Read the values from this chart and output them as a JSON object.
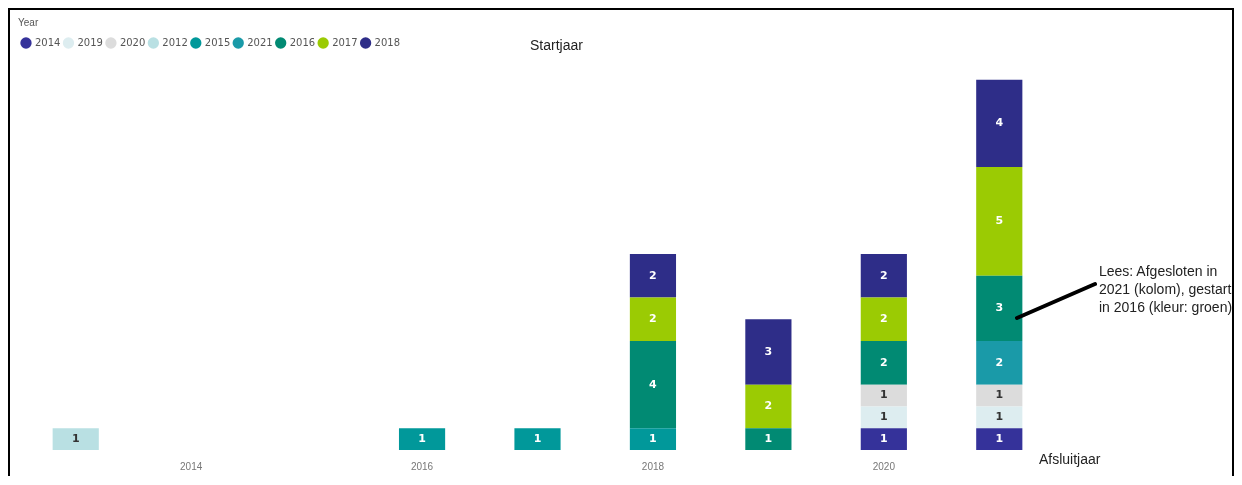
{
  "chart_data": {
    "type": "bar",
    "stacked": true,
    "data_labels": true,
    "legend": "top left",
    "legend_title": "Year",
    "ylabel": "Startjaar",
    "xlabel": "Afsluitjaar",
    "tick_labels": "x",
    "grid": false,
    "marker": "circle",
    "categories": [
      null,
      "2014",
      null,
      "2016",
      null,
      "2018",
      null,
      "2020",
      null
    ],
    "series": [
      {
        "name": "2014",
        "color": "#35329a",
        "values": [
          null,
          null,
          null,
          null,
          null,
          null,
          null,
          1,
          1
        ]
      },
      {
        "name": "2019",
        "color": "#ddedf0",
        "values": [
          null,
          null,
          null,
          null,
          null,
          null,
          null,
          1,
          1
        ]
      },
      {
        "name": "2020",
        "color": "#dcdcdc",
        "values": [
          null,
          null,
          null,
          null,
          null,
          null,
          null,
          1,
          1
        ]
      },
      {
        "name": "2012",
        "color": "#b9e0e3",
        "values": [
          1,
          null,
          null,
          null,
          null,
          null,
          null,
          null,
          null
        ]
      },
      {
        "name": "2015",
        "color": "#01989a",
        "values": [
          null,
          null,
          null,
          1,
          1,
          1,
          null,
          null,
          null
        ]
      },
      {
        "name": "2021",
        "color": "#1a9aa8",
        "values": [
          null,
          null,
          null,
          null,
          null,
          null,
          null,
          null,
          2
        ]
      },
      {
        "name": "2016",
        "color": "#018a73",
        "values": [
          null,
          null,
          null,
          null,
          null,
          4,
          1,
          2,
          3
        ]
      },
      {
        "name": "2017",
        "color": "#9bcb03",
        "values": [
          null,
          null,
          null,
          null,
          null,
          2,
          2,
          2,
          5
        ]
      },
      {
        "name": "2018",
        "color": "#2e2d88",
        "values": [
          null,
          null,
          null,
          null,
          null,
          2,
          3,
          2,
          4
        ]
      }
    ],
    "annotations": [
      "Lees: Afgesloten in 2021 (kolom), gestart in 2016 (kleur: groen)"
    ]
  }
}
